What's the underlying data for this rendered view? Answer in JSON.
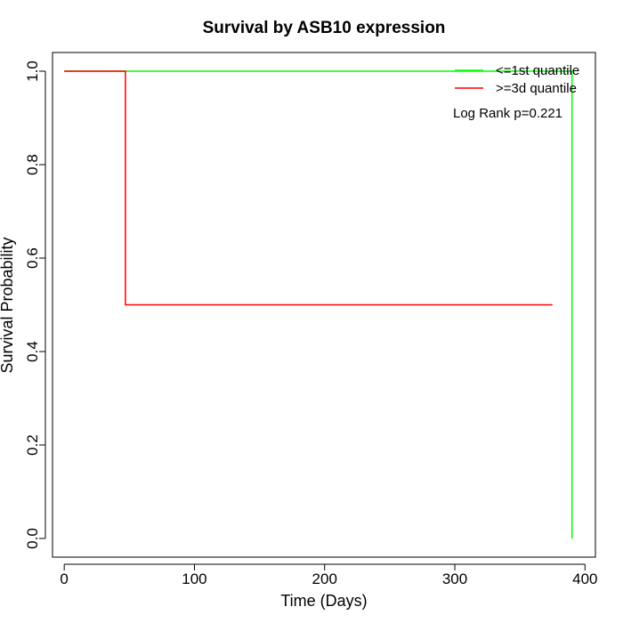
{
  "chart_data": {
    "type": "line",
    "title": "Survival by ASB10 expression",
    "xlabel": "Time (Days)",
    "ylabel": "Survival Probability",
    "xlim": [
      -9,
      408
    ],
    "ylim": [
      -0.04,
      1.04
    ],
    "x_ticks": [
      0,
      100,
      200,
      300,
      400
    ],
    "y_ticks": [
      0.0,
      0.2,
      0.4,
      0.6,
      0.8,
      1.0
    ],
    "x_tick_labels": [
      "0",
      "100",
      "200",
      "300",
      "400"
    ],
    "y_tick_labels": [
      "0.0",
      "0.2",
      "0.4",
      "0.6",
      "0.8",
      "1.0"
    ],
    "grid": false,
    "legend_position": "top-right",
    "annotation": "Log Rank p=0.221",
    "series": [
      {
        "name": "<=1st quantile",
        "color": "#00ff00",
        "step_points": [
          [
            0,
            1.0
          ],
          [
            390,
            1.0
          ],
          [
            390,
            0.0
          ]
        ]
      },
      {
        "name": ">=3d quantile",
        "color": "#ff0000",
        "step_points": [
          [
            0,
            1.0
          ],
          [
            47,
            1.0
          ],
          [
            47,
            0.5
          ],
          [
            375,
            0.5
          ]
        ]
      }
    ]
  }
}
